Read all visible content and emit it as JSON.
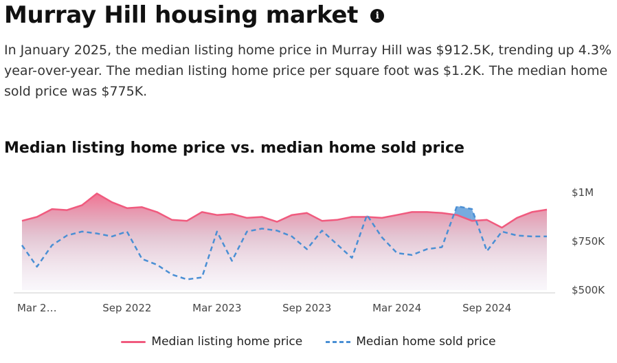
{
  "header": {
    "title": "Murray Hill housing market",
    "info_icon": "info-icon",
    "summary": "In January 2025, the median listing home price in Murray Hill was $912.5K, trending up 4.3% year-over-year. The median listing home price per square foot was $1.2K. The median home sold price was $775K."
  },
  "colors": {
    "listing": "#f05a7e",
    "sold": "#4a8fd4"
  },
  "chart_data": {
    "type": "line",
    "title": "Median listing home price vs. median home sold price",
    "x_labels": [
      "Mar 2…",
      "Sep 2022",
      "Mar 2023",
      "Sep 2023",
      "Mar 2024",
      "Sep 2024"
    ],
    "y_ticks": [
      "$500K",
      "$750K",
      "$1M"
    ],
    "ylim": [
      500000,
      1000000
    ],
    "months": [
      "2022-02",
      "2022-03",
      "2022-04",
      "2022-05",
      "2022-06",
      "2022-07",
      "2022-08",
      "2022-09",
      "2022-10",
      "2022-11",
      "2022-12",
      "2023-01",
      "2023-02",
      "2023-03",
      "2023-04",
      "2023-05",
      "2023-06",
      "2023-07",
      "2023-08",
      "2023-09",
      "2023-10",
      "2023-11",
      "2023-12",
      "2024-01",
      "2024-02",
      "2024-03",
      "2024-04",
      "2024-05",
      "2024-06",
      "2024-07",
      "2024-08",
      "2024-09",
      "2024-10",
      "2024-11",
      "2024-12",
      "2025-01"
    ],
    "series": [
      {
        "name": "Median listing home price",
        "style": "solid-area",
        "values": [
          855000,
          875000,
          915000,
          910000,
          935000,
          995000,
          950000,
          920000,
          925000,
          900000,
          860000,
          855000,
          900000,
          885000,
          890000,
          870000,
          875000,
          850000,
          885000,
          895000,
          855000,
          860000,
          875000,
          875000,
          870000,
          885000,
          900000,
          900000,
          895000,
          885000,
          855000,
          860000,
          820000,
          870000,
          900000,
          912500
        ]
      },
      {
        "name": "Median home sold price",
        "style": "dashed",
        "values": [
          730000,
          620000,
          730000,
          780000,
          800000,
          790000,
          775000,
          800000,
          660000,
          630000,
          580000,
          555000,
          565000,
          800000,
          650000,
          800000,
          815000,
          805000,
          775000,
          710000,
          805000,
          735000,
          665000,
          885000,
          770000,
          690000,
          680000,
          710000,
          720000,
          930000,
          915000,
          700000,
          800000,
          780000,
          775000,
          775000
        ]
      }
    ],
    "legend_placement": "bottom-center",
    "grid": false
  }
}
